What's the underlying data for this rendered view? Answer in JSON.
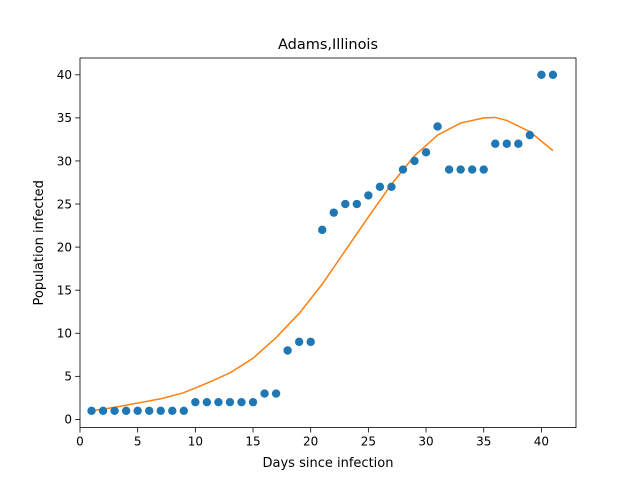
{
  "chart_data": {
    "type": "scatter",
    "title": "Adams,Illinois",
    "xlabel": "Days since infection",
    "ylabel": "Population infected",
    "xlim": [
      -0.0,
      43.0
    ],
    "ylim": [
      -0.95,
      41.95
    ],
    "xticks": [
      0,
      5,
      10,
      15,
      20,
      25,
      30,
      35,
      40
    ],
    "yticks": [
      0,
      5,
      10,
      15,
      20,
      25,
      30,
      35,
      40
    ],
    "grid": false,
    "colors": {
      "points": "#1f77b4",
      "fit": "#ff7f0e"
    },
    "series": [
      {
        "kind": "scatter",
        "x": [
          1,
          2,
          3,
          4,
          5,
          6,
          7,
          8,
          9,
          10,
          11,
          12,
          13,
          14,
          15,
          16,
          17,
          18,
          19,
          20,
          21,
          22,
          23,
          24,
          25,
          26,
          27,
          28,
          29,
          30,
          31,
          32,
          33,
          34,
          35,
          36,
          37,
          38,
          39,
          40,
          41
        ],
        "y": [
          1,
          1,
          1,
          1,
          1,
          1,
          1,
          1,
          1,
          2,
          2,
          2,
          2,
          2,
          2,
          3,
          3,
          8,
          9,
          9,
          22,
          24,
          25,
          25,
          26,
          27,
          27,
          29,
          30,
          31,
          34,
          29,
          29,
          29,
          29,
          32,
          32,
          32,
          33,
          40,
          40
        ]
      },
      {
        "kind": "line",
        "x": [
          1,
          3,
          5,
          7,
          9,
          11,
          13,
          15,
          17,
          19,
          21,
          23,
          25,
          27,
          29,
          31,
          33,
          35,
          36,
          37,
          39,
          41
        ],
        "y": [
          1.0,
          1.4,
          1.9,
          2.4,
          3.1,
          4.2,
          5.4,
          7.1,
          9.5,
          12.3,
          15.7,
          19.6,
          23.5,
          27.3,
          30.6,
          33.0,
          34.4,
          35.0,
          35.05,
          34.7,
          33.4,
          31.2
        ]
      }
    ]
  }
}
